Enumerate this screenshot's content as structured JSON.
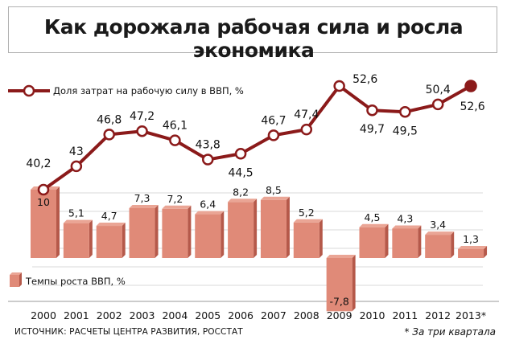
{
  "title": "Как дорожала рабочая сила и росла экономика",
  "source": "ИСТОЧНИК: РАСЧЕТЫ ЦЕНТРА РАЗВИТИЯ, РОССТАТ",
  "footnote": "* За три квартала",
  "colors": {
    "line": "#8b1a1a",
    "bar_face": "#e08a78",
    "bar_side": "#b5594a",
    "grid": "#d9d9d9",
    "marker_fill": "#ffffff",
    "last_marker": "#8b1a1a"
  },
  "chart_data": [
    {
      "type": "line",
      "legend": "Доля затрат на рабочую силу в ВВП, %",
      "categories": [
        "2000",
        "2001",
        "2002",
        "2003",
        "2004",
        "2005",
        "2006",
        "2007",
        "2008",
        "2009",
        "2010",
        "2011",
        "2012",
        "2013*"
      ],
      "values": [
        40.2,
        43,
        46.8,
        47.2,
        46.1,
        43.8,
        44.5,
        46.7,
        47.4,
        52.6,
        49.7,
        49.5,
        50.4,
        52.6
      ],
      "value_labels": [
        "40,2",
        "43",
        "46,8",
        "47,2",
        "46,1",
        "43,8",
        "44,5",
        "46,7",
        "47,4",
        "52,6",
        "49,7",
        "49,5",
        "50,4",
        "52,6"
      ],
      "ylim": [
        38,
        54
      ]
    },
    {
      "type": "bar",
      "legend": "Темпы роста ВВП, %",
      "categories": [
        "2000",
        "2001",
        "2002",
        "2003",
        "2004",
        "2005",
        "2006",
        "2007",
        "2008",
        "2009",
        "2010",
        "2011",
        "2012",
        "2013*"
      ],
      "values": [
        10,
        5.1,
        4.7,
        7.3,
        7.2,
        6.4,
        8.2,
        8.5,
        5.2,
        -7.8,
        4.5,
        4.3,
        3.4,
        1.3
      ],
      "value_labels": [
        "10",
        "5,1",
        "4,7",
        "7,3",
        "7,2",
        "6,4",
        "8,2",
        "8,5",
        "5,2",
        "-7,8",
        "4,5",
        "4,3",
        "3,4",
        "1,3"
      ]
    }
  ]
}
